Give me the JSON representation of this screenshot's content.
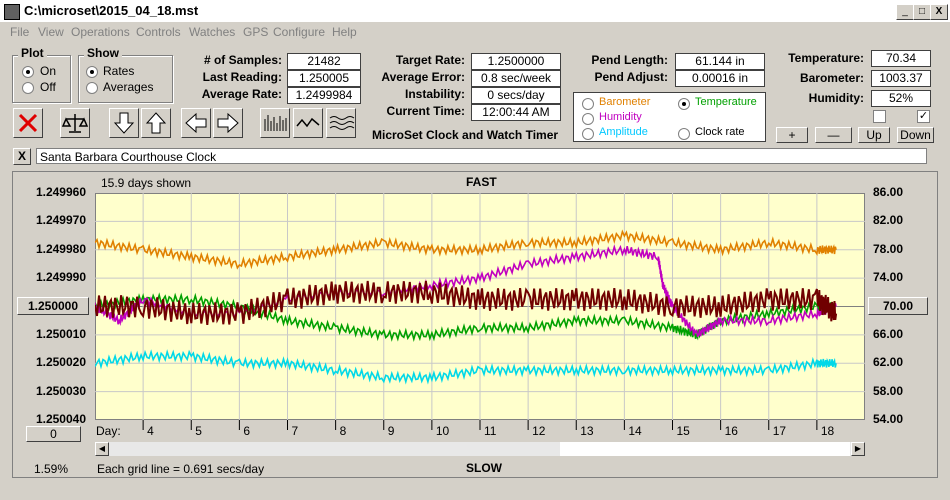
{
  "window": {
    "title": "C:\\microset\\2015_04_18.mst",
    "min_label": "_",
    "max_label": "□",
    "close_label": "X"
  },
  "menu": [
    "File",
    "View",
    "Operations",
    "Controls",
    "Watches",
    "GPS",
    "Configure",
    "Help"
  ],
  "plot_group": {
    "title": "Plot",
    "on_label": "On",
    "off_label": "Off",
    "selected": "On"
  },
  "show_group": {
    "title": "Show",
    "rates_label": "Rates",
    "averages_label": "Averages",
    "selected": "Rates"
  },
  "stats": {
    "samples_label": "# of Samples:",
    "samples": "21482",
    "last_label": "Last Reading:",
    "last": "1.250005",
    "avgrate_label": "Average Rate:",
    "avgrate": "1.2499984",
    "target_label": "Target Rate:",
    "target": "1.2500000",
    "avgerr_label": "Average Error:",
    "avgerr": "0.8 sec/week",
    "instab_label": "Instability:",
    "instab": "0 secs/day",
    "time_label": "Current Time:",
    "time": "12:00:44 AM",
    "pendlen_label": "Pend Length:",
    "pendlen": "61.144 in",
    "pendadj_label": "Pend Adjust:",
    "pendadj": "0.00016 in",
    "temp_label": "Temperature:",
    "temp": "70.34",
    "baro_label": "Barometer:",
    "baro": "1003.37",
    "hum_label": "Humidity:",
    "hum": "52%"
  },
  "app_caption": "MicroSet Clock and Watch Timer",
  "sensor_options": [
    {
      "label": "Barometer",
      "color": "#e08000",
      "selected": false
    },
    {
      "label": "Temperature",
      "color": "#00a000",
      "selected": true
    },
    {
      "label": "Humidity",
      "color": "#c000c0",
      "selected": false
    },
    {
      "label": "Clock rate",
      "color": "#000000",
      "selected": false
    },
    {
      "label": "Amplitude",
      "color": "#00c8ff",
      "selected": false
    }
  ],
  "scale_buttons": {
    "plus": "+",
    "minus": "—",
    "up": "Up",
    "down": "Down"
  },
  "clock_name": "Santa Barbara Courthouse Clock",
  "clear_label": "X",
  "chart_data": {
    "type": "line",
    "days_shown": "15.9 days shown",
    "top_label": "FAST",
    "bottom_label": "SLOW",
    "grid_note": "Each grid line = 0.691 secs/day",
    "percent": "1.59%",
    "zero_button": "0",
    "center_left": "1.250000",
    "center_right": "70.00",
    "x_prefix": "Day:",
    "left_ticks": [
      "1.249960",
      "1.249970",
      "1.249980",
      "1.249990",
      "1.250000",
      "1.250010",
      "1.250020",
      "1.250030",
      "1.250040"
    ],
    "right_ticks": [
      "86.00",
      "82.00",
      "78.00",
      "74.00",
      "70.00",
      "66.00",
      "62.00",
      "58.00",
      "54.00"
    ],
    "x_ticks": [
      "4",
      "5",
      "6",
      "7",
      "8",
      "9",
      "10",
      "11",
      "12",
      "13",
      "14",
      "15",
      "16",
      "17",
      "18"
    ],
    "xlim": [
      3.0,
      19.0
    ],
    "series": [
      {
        "color": "#e08000",
        "x": [
          3,
          4,
          5,
          6,
          7,
          8,
          9,
          10,
          11,
          12,
          13,
          14,
          15,
          16,
          17,
          18,
          18.4
        ],
        "y": [
          79,
          78,
          77,
          76,
          77,
          78,
          79,
          78,
          78,
          79,
          79,
          80,
          79,
          78,
          79,
          78,
          78
        ]
      },
      {
        "color": "#00a000",
        "x": [
          3,
          4,
          5,
          6,
          7,
          8,
          9,
          10,
          11,
          12,
          13,
          14,
          15,
          15.5,
          16,
          17,
          18,
          18.4
        ],
        "y": [
          70,
          71,
          71,
          70,
          68,
          67,
          66,
          66,
          67,
          67,
          68,
          68,
          67,
          66,
          68,
          69,
          70,
          70
        ]
      },
      {
        "color": "#c000c0",
        "x": [
          3,
          3.5,
          4,
          5,
          6,
          7,
          8,
          9,
          10,
          11,
          12,
          13,
          14,
          14.7,
          14.8,
          15,
          15.5,
          16,
          17,
          18,
          18.4
        ],
        "y": [
          70,
          68,
          71,
          69,
          69,
          71,
          72,
          72,
          73,
          74,
          76,
          77,
          78,
          77,
          73,
          70,
          66,
          68,
          68,
          69,
          70
        ]
      },
      {
        "color": "#700000",
        "x": [
          3,
          4,
          5,
          6,
          7,
          8,
          9,
          10,
          11,
          12,
          13,
          14,
          15,
          16,
          17,
          18,
          18.4
        ],
        "y": [
          70,
          70,
          69,
          69,
          71,
          72,
          72,
          72,
          71,
          71,
          71,
          71,
          70,
          70,
          71,
          71,
          69
        ]
      },
      {
        "color": "#00d8e8",
        "x": [
          3,
          4,
          5,
          6,
          7,
          8,
          9,
          10,
          11,
          12,
          13,
          14,
          15,
          16,
          17,
          18,
          18.4
        ],
        "y": [
          62,
          63,
          63,
          62,
          62,
          61,
          60,
          60,
          61,
          61,
          61,
          61,
          61,
          61,
          61,
          62,
          62
        ]
      }
    ]
  }
}
